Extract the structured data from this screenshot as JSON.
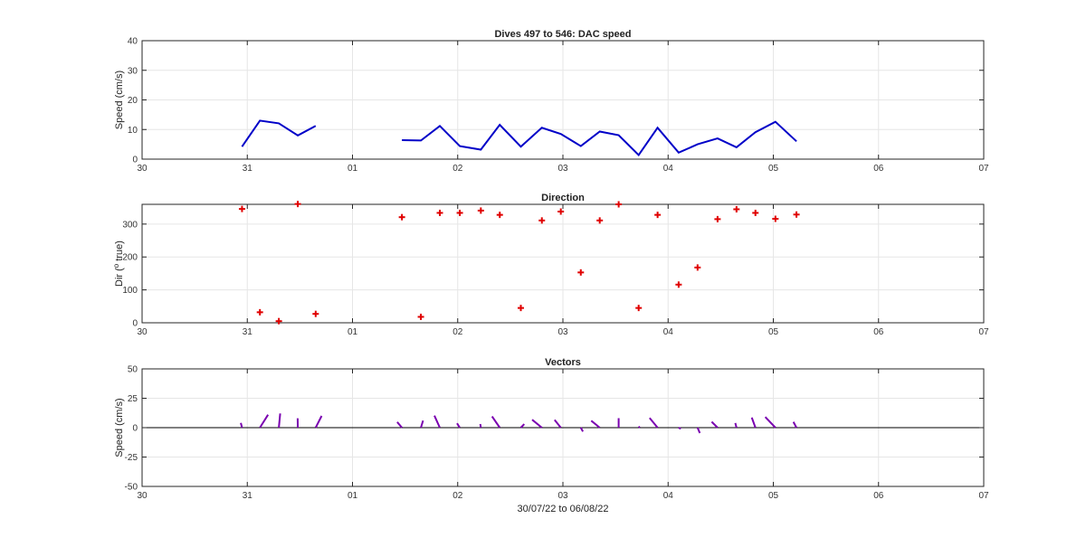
{
  "figure": {
    "xlabel": "30/07/22 to 06/08/22"
  },
  "x_ticks": [
    "30",
    "31",
    "01",
    "02",
    "03",
    "04",
    "05",
    "06",
    "07"
  ],
  "colors": {
    "speed": "#0000c8",
    "direction": "#e00000",
    "vectors": "#7a00b0",
    "grid": "#e6e6e6",
    "axis": "#262626"
  },
  "chart_data": [
    {
      "type": "line",
      "title": "Dives 497 to 546: DAC speed",
      "ylabel": "Speed (cm/s)",
      "xlim": [
        30,
        38
      ],
      "ylim": [
        0,
        40
      ],
      "yticks": [
        0,
        10,
        20,
        30,
        40
      ],
      "grid": true,
      "series": [
        {
          "values": [
            [
              30.95,
              4.2
            ],
            [
              31.12,
              13.0
            ],
            [
              31.3,
              12.1
            ],
            [
              31.48,
              8.0
            ],
            [
              31.65,
              11.2
            ]
          ]
        },
        {
          "values": [
            [
              32.47,
              6.4
            ],
            [
              32.65,
              6.3
            ],
            [
              32.83,
              11.2
            ],
            [
              33.02,
              4.4
            ],
            [
              33.22,
              3.2
            ],
            [
              33.4,
              11.6
            ],
            [
              33.6,
              4.2
            ],
            [
              33.8,
              10.6
            ],
            [
              33.98,
              8.5
            ],
            [
              34.17,
              4.4
            ],
            [
              34.35,
              9.3
            ],
            [
              34.53,
              8.1
            ],
            [
              34.72,
              1.4
            ],
            [
              34.9,
              10.6
            ],
            [
              35.1,
              2.2
            ],
            [
              35.28,
              5.0
            ],
            [
              35.47,
              7.0
            ],
            [
              35.65,
              4.0
            ],
            [
              35.83,
              9.1
            ],
            [
              36.02,
              12.6
            ],
            [
              36.22,
              6.0
            ]
          ]
        }
      ]
    },
    {
      "type": "scatter",
      "title": "Direction",
      "ylabel": "Dir (° true)",
      "ylabel_parts": {
        "prefix": "Dir (",
        "sup": "o",
        "suffix": " true)"
      },
      "xlim": [
        30,
        38
      ],
      "ylim": [
        0,
        360
      ],
      "yticks": [
        0,
        100,
        200,
        300
      ],
      "grid": true,
      "marker": "+",
      "points": [
        [
          30.95,
          346
        ],
        [
          31.12,
          32
        ],
        [
          31.3,
          5
        ],
        [
          31.48,
          361
        ],
        [
          31.65,
          27
        ],
        [
          32.47,
          321
        ],
        [
          32.65,
          18
        ],
        [
          32.83,
          334
        ],
        [
          33.02,
          334
        ],
        [
          33.22,
          341
        ],
        [
          33.4,
          328
        ],
        [
          33.6,
          45
        ],
        [
          33.8,
          311
        ],
        [
          33.98,
          338
        ],
        [
          34.17,
          153
        ],
        [
          34.35,
          311
        ],
        [
          34.53,
          360
        ],
        [
          34.72,
          45
        ],
        [
          34.9,
          328
        ],
        [
          35.1,
          116
        ],
        [
          35.28,
          168
        ],
        [
          35.47,
          315
        ],
        [
          35.65,
          345
        ],
        [
          35.83,
          334
        ],
        [
          36.02,
          316
        ],
        [
          36.22,
          329
        ]
      ]
    },
    {
      "type": "vector",
      "title": "Vectors",
      "ylabel": "Speed (cm/s)",
      "xlim": [
        30,
        38
      ],
      "ylim": [
        -50,
        50
      ],
      "yticks": [
        -50,
        -25,
        0,
        25,
        50
      ],
      "grid": true,
      "baseline": 0,
      "note": "each stick starts at (time, 0) and extends by the east/north current components",
      "sticks": [
        [
          30.95,
          -1.0,
          4.1
        ],
        [
          31.12,
          6.9,
          11.0
        ],
        [
          31.3,
          1.1,
          12.1
        ],
        [
          31.48,
          -0.1,
          8.0
        ],
        [
          31.65,
          5.1,
          10.0
        ],
        [
          32.47,
          -4.0,
          4.8
        ],
        [
          32.65,
          1.9,
          6.0
        ],
        [
          32.83,
          -4.6,
          10.2
        ],
        [
          33.02,
          -2.4,
          3.7
        ],
        [
          33.22,
          -0.5,
          3.1
        ],
        [
          33.4,
          -6.6,
          9.5
        ],
        [
          33.6,
          2.9,
          3.0
        ],
        [
          33.8,
          -8.3,
          6.8
        ],
        [
          33.98,
          -5.3,
          6.6
        ],
        [
          34.17,
          1.8,
          -3.3
        ],
        [
          34.35,
          -7.2,
          5.9
        ],
        [
          34.53,
          0.0,
          8.1
        ],
        [
          34.72,
          1.0,
          1.0
        ],
        [
          34.9,
          -6.8,
          8.2
        ],
        [
          35.1,
          1.9,
          -1.0
        ],
        [
          35.28,
          1.9,
          -4.6
        ],
        [
          35.47,
          -5.0,
          5.0
        ],
        [
          35.65,
          -1.0,
          3.9
        ],
        [
          35.83,
          -3.1,
          8.6
        ],
        [
          36.02,
          -8.6,
          9.1
        ],
        [
          36.22,
          -2.6,
          4.9
        ]
      ]
    }
  ]
}
